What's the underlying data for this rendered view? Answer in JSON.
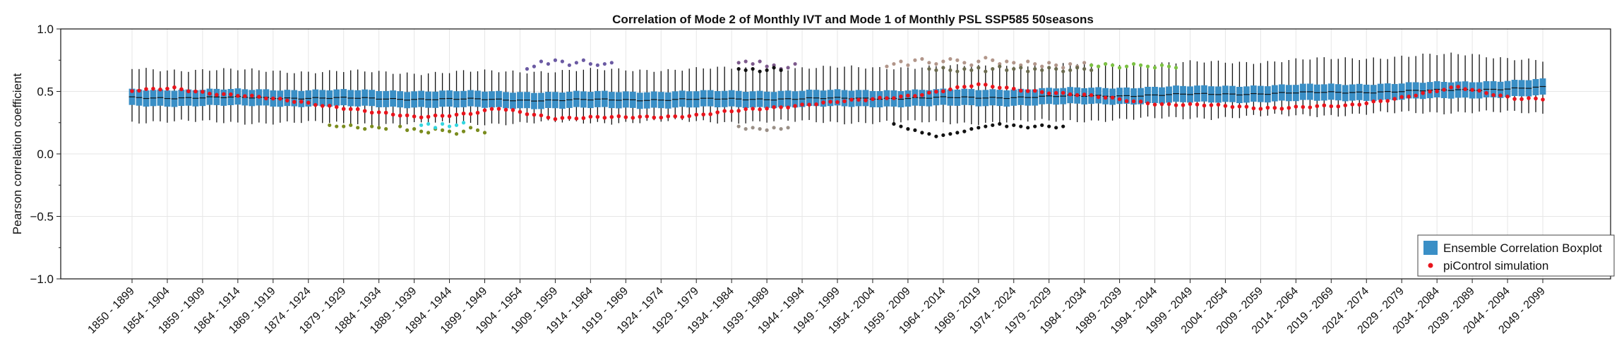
{
  "chart_data": {
    "type": "box",
    "title": "Correlation of Mode 2 of Monthly IVT and Mode 1 of Monthly PSL SSP585 50seasons",
    "xlabel": "",
    "ylabel": "Pearson correlation coefficient",
    "ylim": [
      -1.0,
      1.0
    ],
    "yticks": [
      "1.0",
      "0.5",
      "0.0",
      "−0.5",
      "−1.0"
    ],
    "grid": true,
    "legend_position": "bottom-right",
    "legend": [
      {
        "label": "Ensemble Correlation Boxplot",
        "kind": "box",
        "color": "#3a8fc6"
      },
      {
        "label": "piControl simulation",
        "kind": "dot",
        "color": "#e8141c"
      }
    ],
    "n_windows": 201,
    "first_start_year": 1850,
    "window_length_years": 50,
    "xtick_labels": [
      "1850 - 1899",
      "1854 - 1904",
      "1859 - 1909",
      "1864 - 1914",
      "1869 - 1919",
      "1874 - 1924",
      "1879 - 1929",
      "1884 - 1934",
      "1889 - 1939",
      "1894 - 1944",
      "1899 - 1949",
      "1904 - 1954",
      "1909 - 1959",
      "1914 - 1964",
      "1919 - 1969",
      "1924 - 1974",
      "1929 - 1979",
      "1934 - 1984",
      "1939 - 1989",
      "1944 - 1994",
      "1949 - 1999",
      "1954 - 2004",
      "1959 - 2009",
      "1964 - 2014",
      "1969 - 2019",
      "1974 - 2024",
      "1979 - 2029",
      "1984 - 2034",
      "1989 - 2039",
      "1994 - 2044",
      "1999 - 2049",
      "2004 - 2054",
      "2009 - 2059",
      "2014 - 2064",
      "2019 - 2069",
      "2024 - 2074",
      "2029 - 2079",
      "2034 - 2084",
      "2039 - 2089",
      "2044 - 2094",
      "2049 - 2099"
    ],
    "series": [
      {
        "name": "Ensemble Correlation Boxplot",
        "kind": "box",
        "median_profile": [
          [
            0,
            0.45
          ],
          [
            20,
            0.45
          ],
          [
            60,
            0.43
          ],
          [
            120,
            0.45
          ],
          [
            180,
            0.5
          ],
          [
            200,
            0.53
          ]
        ],
        "box_half_height": 0.065,
        "whisker_profile": [
          [
            0,
            0.26,
            0.68
          ],
          [
            40,
            0.24,
            0.65
          ],
          [
            80,
            0.26,
            0.68
          ],
          [
            120,
            0.25,
            0.7
          ],
          [
            160,
            0.3,
            0.74
          ],
          [
            190,
            0.34,
            0.8
          ],
          [
            200,
            0.32,
            0.74
          ]
        ]
      },
      {
        "name": "piControl simulation",
        "kind": "points",
        "profile": [
          [
            0,
            0.5
          ],
          [
            6,
            0.53
          ],
          [
            12,
            0.48
          ],
          [
            24,
            0.42
          ],
          [
            34,
            0.33
          ],
          [
            40,
            0.3
          ],
          [
            48,
            0.32
          ],
          [
            52,
            0.36
          ],
          [
            60,
            0.29
          ],
          [
            70,
            0.29
          ],
          [
            80,
            0.31
          ],
          [
            96,
            0.4
          ],
          [
            104,
            0.43
          ],
          [
            112,
            0.48
          ],
          [
            120,
            0.55
          ],
          [
            136,
            0.46
          ],
          [
            146,
            0.4
          ],
          [
            160,
            0.37
          ],
          [
            172,
            0.38
          ],
          [
            188,
            0.53
          ],
          [
            196,
            0.45
          ],
          [
            200,
            0.44
          ]
        ]
      }
    ],
    "outliers": [
      {
        "from": 28,
        "to": 36,
        "values": [
          0.23,
          0.22,
          0.22,
          0.23,
          0.21,
          0.2,
          0.22,
          0.21,
          0.2
        ],
        "color": "#7a8c1e"
      },
      {
        "from": 38,
        "to": 50,
        "values": [
          0.22,
          0.19,
          0.2,
          0.18,
          0.17,
          0.2,
          0.19,
          0.18,
          0.16,
          0.18,
          0.21,
          0.19,
          0.17
        ],
        "color": "#7a8c1e"
      },
      {
        "from": 41,
        "to": 47,
        "values": [
          0.23,
          0.24,
          0.21,
          0.24,
          0.22,
          0.23,
          0.25
        ],
        "color": "#33d6e0"
      },
      {
        "from": 56,
        "to": 68,
        "values": [
          0.68,
          0.7,
          0.74,
          0.72,
          0.75,
          0.74,
          0.71,
          0.73,
          0.75,
          0.72,
          0.71,
          0.72,
          0.73
        ],
        "color": "#6b5aa3"
      },
      {
        "from": 86,
        "to": 94,
        "values": [
          0.73,
          0.74,
          0.72,
          0.74,
          0.7,
          0.71,
          0.68,
          0.69,
          0.72
        ],
        "color": "#7d5a8c"
      },
      {
        "from": 86,
        "to": 92,
        "values": [
          0.68,
          0.67,
          0.68,
          0.66,
          0.67,
          0.69,
          0.67
        ],
        "color": "#111111"
      },
      {
        "from": 86,
        "to": 93,
        "values": [
          0.22,
          0.2,
          0.21,
          0.2,
          0.19,
          0.21,
          0.2,
          0.21
        ],
        "color": "#9a8f86"
      },
      {
        "from": 107,
        "to": 138,
        "values": [
          0.7,
          0.72,
          0.74,
          0.71,
          0.75,
          0.76,
          0.73,
          0.72,
          0.74,
          0.76,
          0.75,
          0.73,
          0.71,
          0.74,
          0.77,
          0.75,
          0.72,
          0.74,
          0.73,
          0.71,
          0.74,
          0.72,
          0.7,
          0.73,
          0.71,
          0.69,
          0.72,
          0.7,
          0.73,
          0.71,
          0.7,
          0.72
        ],
        "color": "#b2968a"
      },
      {
        "from": 113,
        "to": 136,
        "values": [
          0.68,
          0.67,
          0.69,
          0.67,
          0.66,
          0.68,
          0.67,
          0.69,
          0.66,
          0.68,
          0.7,
          0.67,
          0.68,
          0.69,
          0.66,
          0.68,
          0.67,
          0.69,
          0.68,
          0.66,
          0.67,
          0.69,
          0.68,
          0.67
        ],
        "color": "#6b6b4f"
      },
      {
        "from": 108,
        "to": 132,
        "values": [
          0.24,
          0.22,
          0.2,
          0.19,
          0.17,
          0.16,
          0.14,
          0.15,
          0.16,
          0.17,
          0.18,
          0.2,
          0.21,
          0.22,
          0.23,
          0.24,
          0.22,
          0.23,
          0.22,
          0.21,
          0.22,
          0.23,
          0.22,
          0.21,
          0.22
        ],
        "color": "#111111"
      },
      {
        "from": 136,
        "to": 148,
        "values": [
          0.71,
          0.7,
          0.72,
          0.71,
          0.69,
          0.7,
          0.72,
          0.71,
          0.7,
          0.69,
          0.71,
          0.7,
          0.69
        ],
        "color": "#7cc243"
      }
    ]
  }
}
